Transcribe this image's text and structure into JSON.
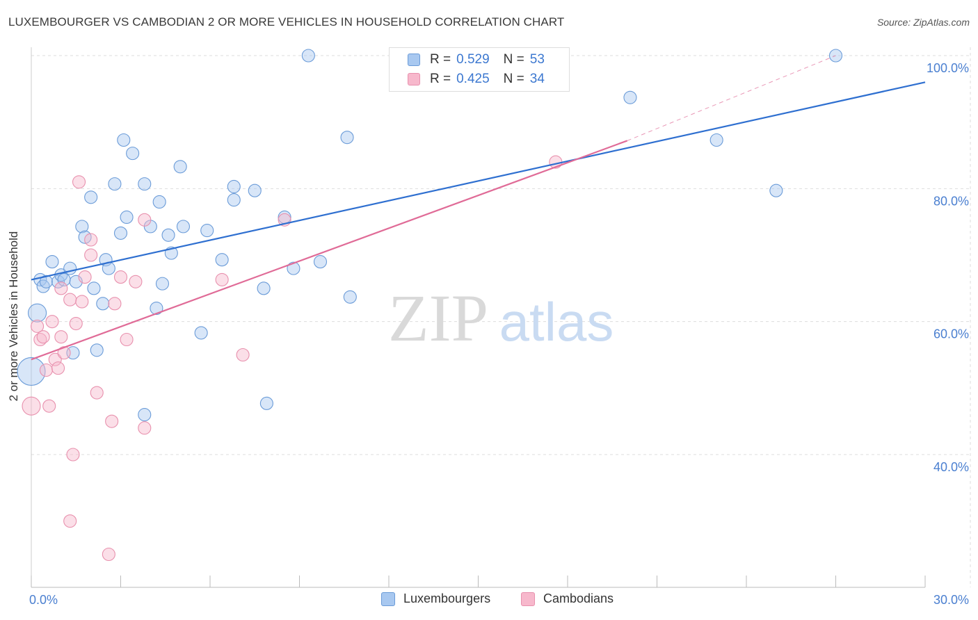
{
  "title": "LUXEMBOURGER VS CAMBODIAN 2 OR MORE VEHICLES IN HOUSEHOLD CORRELATION CHART",
  "source": "Source: ZipAtlas.com",
  "watermark": {
    "zip": "ZIP",
    "atlas": "atlas"
  },
  "legend": {
    "rows": [
      {
        "r_label": "R =",
        "r_value": "0.529",
        "n_label": "N =",
        "n_value": "53"
      },
      {
        "r_label": "R =",
        "r_value": "0.425",
        "n_label": "N =",
        "n_value": "34"
      }
    ]
  },
  "bottom_legend": [
    "Luxembourgers",
    "Cambodians"
  ],
  "colors": {
    "lux_fill": "#a8c8f0",
    "lux_stroke": "#6a9bd8",
    "lux_line": "#2e6fd0",
    "cam_fill": "#f7b8cc",
    "cam_stroke": "#e890ad",
    "cam_line": "#e06b97",
    "grid": "#dddddd",
    "axis_text": "#4a7fd0"
  },
  "chart_data": {
    "type": "scatter",
    "title": "LUXEMBOURGER VS CAMBODIAN 2 OR MORE VEHICLES IN HOUSEHOLD CORRELATION CHART",
    "xlabel": "",
    "ylabel": "2 or more Vehicles in Household",
    "xlim": [
      0,
      30
    ],
    "ylim": [
      20,
      102
    ],
    "x_tick_labels": [
      "0.0%",
      "30.0%"
    ],
    "y_ticks": [
      40,
      60,
      80,
      100
    ],
    "y_tick_labels": [
      "40.0%",
      "60.0%",
      "80.0%",
      "100.0%"
    ],
    "grid": true,
    "legend_position": "top-center",
    "series": [
      {
        "name": "Luxembourgers",
        "r": 0.529,
        "n": 53,
        "trend": {
          "x": [
            0.0,
            30.0
          ],
          "y": [
            66.3,
            96.0
          ]
        },
        "points": [
          [
            0.2,
            61.3,
            "l"
          ],
          [
            0.0,
            52.5,
            "xl"
          ],
          [
            0.3,
            66.3
          ],
          [
            0.4,
            65.3
          ],
          [
            0.5,
            66.0
          ],
          [
            0.7,
            69.0
          ],
          [
            0.9,
            66.0
          ],
          [
            1.0,
            67.0
          ],
          [
            1.1,
            66.3
          ],
          [
            1.3,
            68.0
          ],
          [
            1.5,
            66.0
          ],
          [
            1.7,
            74.3
          ],
          [
            1.8,
            72.7
          ],
          [
            2.0,
            78.7
          ],
          [
            2.1,
            65.0
          ],
          [
            2.2,
            55.7
          ],
          [
            2.4,
            62.7
          ],
          [
            2.5,
            69.3
          ],
          [
            2.6,
            68.0
          ],
          [
            2.8,
            80.7
          ],
          [
            3.0,
            73.3
          ],
          [
            3.1,
            87.3
          ],
          [
            3.2,
            75.7
          ],
          [
            3.4,
            85.3
          ],
          [
            3.8,
            80.7
          ],
          [
            3.8,
            46.0
          ],
          [
            4.0,
            74.3
          ],
          [
            4.2,
            62.0
          ],
          [
            4.3,
            78.0
          ],
          [
            4.4,
            65.7
          ],
          [
            4.6,
            73.0
          ],
          [
            4.7,
            70.3
          ],
          [
            5.0,
            83.3
          ],
          [
            5.1,
            74.3
          ],
          [
            5.7,
            58.3
          ],
          [
            5.9,
            73.7
          ],
          [
            6.4,
            69.3
          ],
          [
            6.8,
            78.3
          ],
          [
            6.8,
            80.3
          ],
          [
            7.5,
            79.7
          ],
          [
            7.8,
            65.0
          ],
          [
            7.9,
            47.7
          ],
          [
            8.5,
            75.7
          ],
          [
            8.8,
            68.0
          ],
          [
            9.3,
            100.0
          ],
          [
            9.7,
            69.0
          ],
          [
            10.6,
            87.7
          ],
          [
            10.7,
            63.7
          ],
          [
            20.1,
            93.7
          ],
          [
            23.0,
            87.3
          ],
          [
            25.0,
            79.7
          ],
          [
            27.0,
            100.0
          ],
          [
            1.4,
            55.3
          ]
        ]
      },
      {
        "name": "Cambodians",
        "r": 0.425,
        "n": 34,
        "trend": {
          "x": [
            0.0,
            20.0
          ],
          "y": [
            54.3,
            87.2
          ]
        },
        "trend_extension": {
          "x": [
            20.0,
            27.0
          ],
          "y": [
            87.2,
            100.0
          ]
        },
        "points": [
          [
            0.0,
            47.3,
            "l"
          ],
          [
            0.2,
            59.3
          ],
          [
            0.3,
            57.3
          ],
          [
            0.4,
            57.7
          ],
          [
            0.5,
            52.7
          ],
          [
            0.6,
            47.3
          ],
          [
            0.7,
            60.0
          ],
          [
            0.8,
            54.3
          ],
          [
            0.9,
            53.0
          ],
          [
            1.0,
            65.0
          ],
          [
            1.1,
            55.3
          ],
          [
            1.3,
            63.3
          ],
          [
            1.3,
            30.0
          ],
          [
            1.4,
            40.0
          ],
          [
            1.5,
            59.7
          ],
          [
            1.6,
            81.0
          ],
          [
            1.7,
            63.0
          ],
          [
            1.8,
            66.7
          ],
          [
            2.0,
            72.3
          ],
          [
            2.0,
            70.0
          ],
          [
            2.2,
            49.3
          ],
          [
            2.6,
            25.0
          ],
          [
            2.7,
            45.0
          ],
          [
            2.8,
            62.7
          ],
          [
            3.0,
            66.7
          ],
          [
            3.2,
            57.3
          ],
          [
            3.5,
            66.0
          ],
          [
            3.8,
            75.3
          ],
          [
            3.8,
            44.0
          ],
          [
            6.4,
            66.3
          ],
          [
            7.1,
            55.0
          ],
          [
            8.5,
            75.3
          ],
          [
            17.6,
            84.0
          ],
          [
            1.0,
            57.7
          ]
        ]
      }
    ]
  }
}
